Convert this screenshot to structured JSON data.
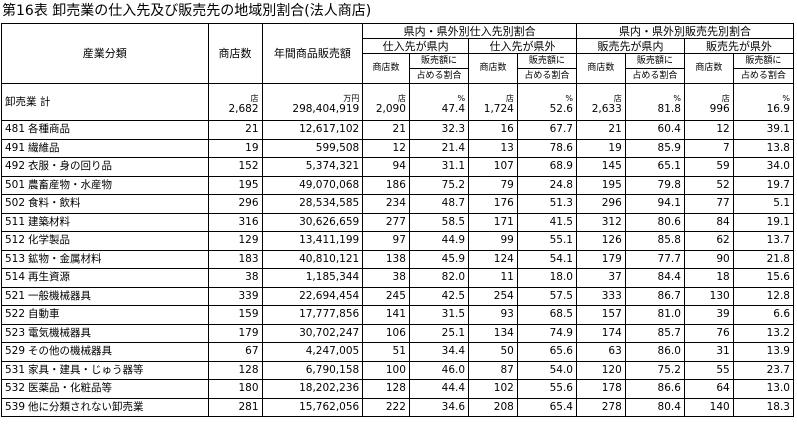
{
  "title": "第16表 卸売業の仕入先及び販売先の地域別割合(法人商店)",
  "headers": {
    "industry": "産業分類",
    "stores": "商店数",
    "sales": "年間商品販売額",
    "purchase_group": "県内・県外別仕入先別割合",
    "sales_group": "県内・県外別販売先別割合",
    "purchase_in": "仕入先が県内",
    "purchase_out": "仕入先が県外",
    "sales_in": "販売先が県内",
    "sales_out": "販売先が県外",
    "sub_stores": "商店数",
    "sub_share_1": "販売額に",
    "sub_share_2": "占める割合"
  },
  "units": {
    "stores": "店",
    "sales": "万円",
    "p_in_stores": "店",
    "p_in_pct": "%",
    "p_out_stores": "店",
    "p_out_pct": "%",
    "s_in_stores": "店",
    "s_in_pct": "%",
    "s_out_stores": "店",
    "s_out_pct": "%"
  },
  "total": {
    "label": "卸売業 計",
    "stores": "2,682",
    "sales": "298,404,919",
    "p_in_stores": "2,090",
    "p_in_pct": "47.4",
    "p_out_stores": "1,724",
    "p_out_pct": "52.6",
    "s_in_stores": "2,633",
    "s_in_pct": "81.8",
    "s_out_stores": "996",
    "s_out_pct": "16.9"
  },
  "rows": [
    {
      "code": "481",
      "name": "各種商品",
      "stores": "21",
      "sales": "12,617,102",
      "p_in_stores": "21",
      "p_in_pct": "32.3",
      "p_out_stores": "16",
      "p_out_pct": "67.7",
      "s_in_stores": "21",
      "s_in_pct": "60.4",
      "s_out_stores": "12",
      "s_out_pct": "39.1"
    },
    {
      "code": "491",
      "name": "繊維品",
      "stores": "19",
      "sales": "599,508",
      "p_in_stores": "12",
      "p_in_pct": "21.4",
      "p_out_stores": "13",
      "p_out_pct": "78.6",
      "s_in_stores": "19",
      "s_in_pct": "85.9",
      "s_out_stores": "7",
      "s_out_pct": "13.8"
    },
    {
      "code": "492",
      "name": "衣服・身の回り品",
      "stores": "152",
      "sales": "5,374,321",
      "p_in_stores": "94",
      "p_in_pct": "31.1",
      "p_out_stores": "107",
      "p_out_pct": "68.9",
      "s_in_stores": "145",
      "s_in_pct": "65.1",
      "s_out_stores": "59",
      "s_out_pct": "34.0"
    },
    {
      "code": "501",
      "name": "農畜産物・水産物",
      "stores": "195",
      "sales": "49,070,068",
      "p_in_stores": "186",
      "p_in_pct": "75.2",
      "p_out_stores": "79",
      "p_out_pct": "24.8",
      "s_in_stores": "195",
      "s_in_pct": "79.8",
      "s_out_stores": "52",
      "s_out_pct": "19.7"
    },
    {
      "code": "502",
      "name": "食料・飲料",
      "stores": "296",
      "sales": "28,534,585",
      "p_in_stores": "234",
      "p_in_pct": "48.7",
      "p_out_stores": "176",
      "p_out_pct": "51.3",
      "s_in_stores": "296",
      "s_in_pct": "94.1",
      "s_out_stores": "77",
      "s_out_pct": "5.1"
    },
    {
      "code": "511",
      "name": "建築材料",
      "stores": "316",
      "sales": "30,626,659",
      "p_in_stores": "277",
      "p_in_pct": "58.5",
      "p_out_stores": "171",
      "p_out_pct": "41.5",
      "s_in_stores": "312",
      "s_in_pct": "80.6",
      "s_out_stores": "84",
      "s_out_pct": "19.1"
    },
    {
      "code": "512",
      "name": "化学製品",
      "stores": "129",
      "sales": "13,411,199",
      "p_in_stores": "97",
      "p_in_pct": "44.9",
      "p_out_stores": "99",
      "p_out_pct": "55.1",
      "s_in_stores": "126",
      "s_in_pct": "85.8",
      "s_out_stores": "62",
      "s_out_pct": "13.7"
    },
    {
      "code": "513",
      "name": "鉱物・金属材料",
      "stores": "183",
      "sales": "40,810,121",
      "p_in_stores": "138",
      "p_in_pct": "45.9",
      "p_out_stores": "124",
      "p_out_pct": "54.1",
      "s_in_stores": "179",
      "s_in_pct": "77.7",
      "s_out_stores": "90",
      "s_out_pct": "21.8"
    },
    {
      "code": "514",
      "name": "再生資源",
      "stores": "38",
      "sales": "1,185,344",
      "p_in_stores": "38",
      "p_in_pct": "82.0",
      "p_out_stores": "11",
      "p_out_pct": "18.0",
      "s_in_stores": "37",
      "s_in_pct": "84.4",
      "s_out_stores": "18",
      "s_out_pct": "15.6"
    },
    {
      "code": "521",
      "name": "一般機械器具",
      "stores": "339",
      "sales": "22,694,454",
      "p_in_stores": "245",
      "p_in_pct": "42.5",
      "p_out_stores": "254",
      "p_out_pct": "57.5",
      "s_in_stores": "333",
      "s_in_pct": "86.7",
      "s_out_stores": "130",
      "s_out_pct": "12.8"
    },
    {
      "code": "522",
      "name": "自動車",
      "stores": "159",
      "sales": "17,777,856",
      "p_in_stores": "141",
      "p_in_pct": "31.5",
      "p_out_stores": "93",
      "p_out_pct": "68.5",
      "s_in_stores": "157",
      "s_in_pct": "81.0",
      "s_out_stores": "39",
      "s_out_pct": "6.6"
    },
    {
      "code": "523",
      "name": "電気機械器具",
      "stores": "179",
      "sales": "30,702,247",
      "p_in_stores": "106",
      "p_in_pct": "25.1",
      "p_out_stores": "134",
      "p_out_pct": "74.9",
      "s_in_stores": "174",
      "s_in_pct": "85.7",
      "s_out_stores": "76",
      "s_out_pct": "13.2"
    },
    {
      "code": "529",
      "name": "その他の機械器具",
      "stores": "67",
      "sales": "4,247,005",
      "p_in_stores": "51",
      "p_in_pct": "34.4",
      "p_out_stores": "50",
      "p_out_pct": "65.6",
      "s_in_stores": "63",
      "s_in_pct": "86.0",
      "s_out_stores": "31",
      "s_out_pct": "13.9"
    },
    {
      "code": "531",
      "name": "家具・建具・じゅう器等",
      "stores": "128",
      "sales": "6,790,158",
      "p_in_stores": "100",
      "p_in_pct": "46.0",
      "p_out_stores": "87",
      "p_out_pct": "54.0",
      "s_in_stores": "120",
      "s_in_pct": "75.2",
      "s_out_stores": "55",
      "s_out_pct": "23.7"
    },
    {
      "code": "532",
      "name": "医薬品・化粧品等",
      "stores": "180",
      "sales": "18,202,236",
      "p_in_stores": "128",
      "p_in_pct": "44.4",
      "p_out_stores": "102",
      "p_out_pct": "55.6",
      "s_in_stores": "178",
      "s_in_pct": "86.6",
      "s_out_stores": "64",
      "s_out_pct": "13.0"
    },
    {
      "code": "539",
      "name": "他に分類されない卸売業",
      "stores": "281",
      "sales": "15,762,056",
      "p_in_stores": "222",
      "p_in_pct": "34.6",
      "p_out_stores": "208",
      "p_out_pct": "65.4",
      "s_in_stores": "278",
      "s_in_pct": "80.4",
      "s_out_stores": "140",
      "s_out_pct": "18.3"
    }
  ]
}
